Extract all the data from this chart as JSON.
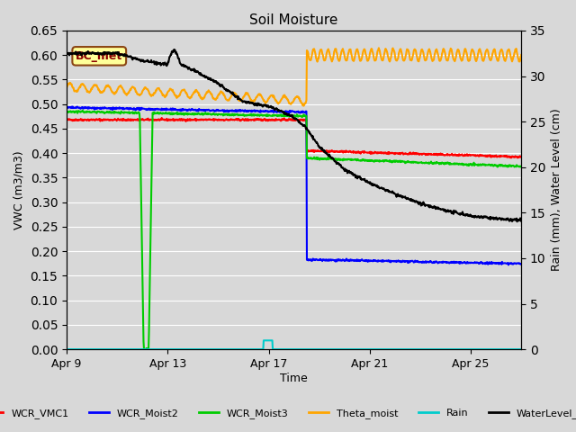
{
  "title": "Soil Moisture",
  "xlabel": "Time",
  "ylabel_left": "VWC (m3/m3)",
  "ylabel_right": "Rain (mm), Water Level (cm)",
  "ylim_left": [
    0.0,
    0.65
  ],
  "ylim_right": [
    0,
    35
  ],
  "yticks_left": [
    0.0,
    0.05,
    0.1,
    0.15,
    0.2,
    0.25,
    0.3,
    0.35,
    0.4,
    0.45,
    0.5,
    0.55,
    0.6,
    0.65
  ],
  "yticks_right": [
    0,
    5,
    10,
    15,
    20,
    25,
    30,
    35
  ],
  "xtick_labels": [
    "Apr 9",
    "Apr 13",
    "Apr 17",
    "Apr 21",
    "Apr 25"
  ],
  "annotation_label": "BC_met",
  "legend_entries": [
    {
      "label": "WCR_VMC1",
      "color": "#ff0000"
    },
    {
      "label": "WCR_Moist2",
      "color": "#0000ff"
    },
    {
      "label": "WCR_Moist3",
      "color": "#00cc00"
    },
    {
      "label": "Theta_moist",
      "color": "#ffa500"
    },
    {
      "label": "Rain",
      "color": "#00cccc"
    },
    {
      "label": "WaterLevel_cm",
      "color": "#000000"
    }
  ]
}
